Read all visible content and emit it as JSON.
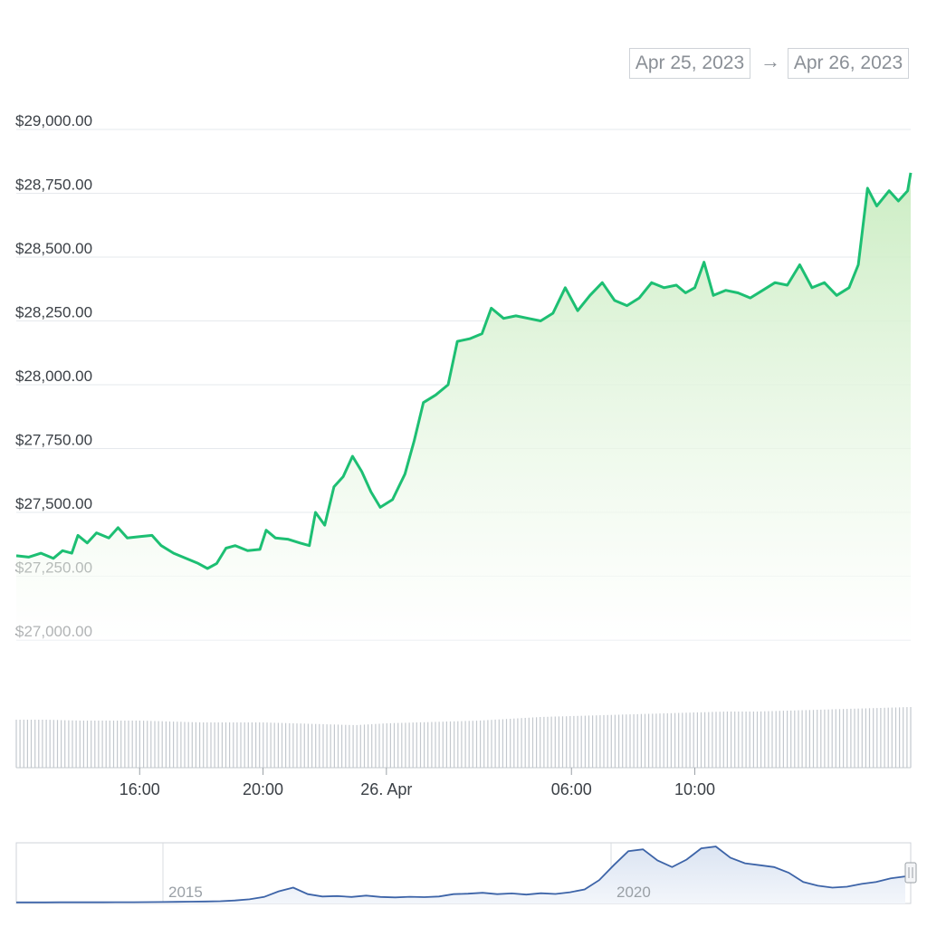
{
  "date_range": {
    "from": "Apr 25, 2023",
    "arrow": "→",
    "to": "Apr 26, 2023"
  },
  "colors": {
    "line": "#1dbf73",
    "area_top": "#c9ecc0",
    "grid": "#e6e9ed",
    "volume": "#c3c8ce",
    "navigator_line": "#3d64a8",
    "navigator_fill": "#e9eef6"
  },
  "chart_data": {
    "type": "area",
    "title": "",
    "xlabel": "",
    "ylabel": "",
    "y_axis": {
      "ylim": [
        27000,
        29000
      ],
      "ticks": [
        27000,
        27250,
        27500,
        27750,
        28000,
        28250,
        28500,
        28750,
        29000
      ],
      "tick_labels": [
        "$27,000.00",
        "$27,250.00",
        "$27,500.00",
        "$27,750.00",
        "$28,000.00",
        "$28,250.00",
        "$28,500.00",
        "$28,750.00",
        "$29,000.00"
      ]
    },
    "x_axis": {
      "xlim_hours": [
        12.0,
        34.8
      ],
      "ticks": [
        16,
        20,
        24,
        30,
        34
      ],
      "tick_labels": [
        "16:00",
        "20:00",
        "26. Apr",
        "06:00",
        "10:00"
      ]
    },
    "series": [
      {
        "values": [
          [
            12.0,
            27330
          ],
          [
            12.4,
            27325
          ],
          [
            12.8,
            27340
          ],
          [
            13.2,
            27320
          ],
          [
            13.5,
            27350
          ],
          [
            13.8,
            27340
          ],
          [
            14.0,
            27410
          ],
          [
            14.3,
            27380
          ],
          [
            14.6,
            27420
          ],
          [
            15.0,
            27400
          ],
          [
            15.3,
            27440
          ],
          [
            15.6,
            27400
          ],
          [
            16.0,
            27405
          ],
          [
            16.4,
            27410
          ],
          [
            16.7,
            27370
          ],
          [
            17.1,
            27340
          ],
          [
            17.5,
            27320
          ],
          [
            17.9,
            27300
          ],
          [
            18.2,
            27280
          ],
          [
            18.5,
            27300
          ],
          [
            18.8,
            27360
          ],
          [
            19.1,
            27370
          ],
          [
            19.5,
            27350
          ],
          [
            19.9,
            27355
          ],
          [
            20.1,
            27430
          ],
          [
            20.4,
            27400
          ],
          [
            20.8,
            27395
          ],
          [
            21.2,
            27380
          ],
          [
            21.5,
            27370
          ],
          [
            21.7,
            27500
          ],
          [
            22.0,
            27450
          ],
          [
            22.3,
            27600
          ],
          [
            22.6,
            27640
          ],
          [
            22.9,
            27720
          ],
          [
            23.2,
            27660
          ],
          [
            23.5,
            27580
          ],
          [
            23.8,
            27520
          ],
          [
            24.2,
            27550
          ],
          [
            24.6,
            27650
          ],
          [
            24.9,
            27780
          ],
          [
            25.2,
            27930
          ],
          [
            25.6,
            27960
          ],
          [
            26.0,
            28000
          ],
          [
            26.3,
            28170
          ],
          [
            26.7,
            28180
          ],
          [
            27.1,
            28200
          ],
          [
            27.4,
            28300
          ],
          [
            27.8,
            28260
          ],
          [
            28.2,
            28270
          ],
          [
            28.6,
            28260
          ],
          [
            29.0,
            28250
          ],
          [
            29.4,
            28280
          ],
          [
            29.8,
            28380
          ],
          [
            30.2,
            28290
          ],
          [
            30.6,
            28350
          ],
          [
            31.0,
            28400
          ],
          [
            31.4,
            28330
          ],
          [
            31.8,
            28310
          ],
          [
            32.2,
            28340
          ],
          [
            32.6,
            28400
          ],
          [
            33.0,
            28380
          ],
          [
            33.4,
            28390
          ],
          [
            33.7,
            28360
          ],
          [
            34.0,
            28380
          ],
          [
            34.3,
            28480
          ],
          [
            34.6,
            28350
          ],
          [
            35.0,
            28370
          ],
          [
            35.4,
            28360
          ],
          [
            35.8,
            28340
          ],
          [
            36.2,
            28370
          ],
          [
            36.6,
            28400
          ],
          [
            37.0,
            28390
          ],
          [
            37.4,
            28470
          ],
          [
            37.8,
            28380
          ],
          [
            38.2,
            28400
          ],
          [
            38.6,
            28350
          ],
          [
            39.0,
            28380
          ],
          [
            39.3,
            28470
          ],
          [
            39.6,
            28770
          ],
          [
            39.9,
            28700
          ],
          [
            40.3,
            28760
          ],
          [
            40.6,
            28720
          ],
          [
            40.9,
            28760
          ],
          [
            41.0,
            28830
          ]
        ]
      }
    ],
    "volume": {
      "note": "",
      "values": [
        53,
        53,
        52,
        52,
        52,
        51,
        50,
        50,
        50,
        49,
        48,
        47,
        49,
        50,
        51,
        52,
        54,
        56,
        57,
        58,
        59,
        60,
        61,
        62,
        62,
        63,
        64,
        65,
        66,
        67
      ]
    },
    "navigator": {
      "x_labels": [
        "2015",
        "2020"
      ],
      "values": [
        0.2,
        0.2,
        0.2,
        0.3,
        0.3,
        0.3,
        0.3,
        0.4,
        0.4,
        0.5,
        0.6,
        0.8,
        1.0,
        1.2,
        1.5,
        2.2,
        3.5,
        6.0,
        12.0,
        16.0,
        9.0,
        6.5,
        7.0,
        6.0,
        7.5,
        6.0,
        5.5,
        6.2,
        5.8,
        6.5,
        9.0,
        9.5,
        10.5,
        9.0,
        9.8,
        8.5,
        10.0,
        9.2,
        11.0,
        14.0,
        24.0,
        40.0,
        55.0,
        57.0,
        45.0,
        38.0,
        46.0,
        58.0,
        60.0,
        48.0,
        42.0,
        40.0,
        38.0,
        32.0,
        22.0,
        18.0,
        16.0,
        17.0,
        20.0,
        22.0,
        26.0,
        28.0
      ]
    }
  }
}
